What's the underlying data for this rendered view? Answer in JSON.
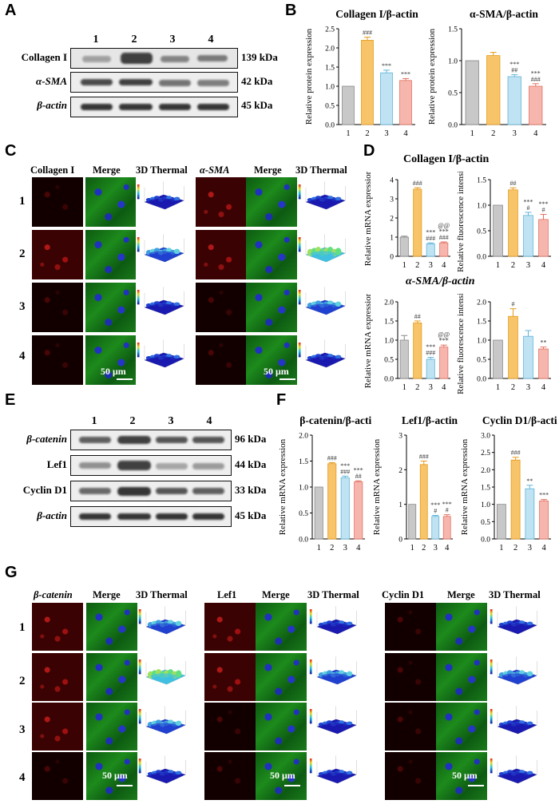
{
  "panels": {
    "A": "A",
    "B": "B",
    "C": "C",
    "D": "D",
    "E": "E",
    "F": "F",
    "G": "G"
  },
  "blot_A": {
    "lanes": [
      "1",
      "2",
      "3",
      "4"
    ],
    "rows": [
      {
        "protein": "Collagen I",
        "kda": "139 kDa"
      },
      {
        "protein": "α-SMA",
        "kda": "42 kDa"
      },
      {
        "protein": "β-actin",
        "kda": "45 kDa"
      }
    ]
  },
  "blot_E": {
    "lanes": [
      "1",
      "2",
      "3",
      "4"
    ],
    "rows": [
      {
        "protein": "β-catenin",
        "kda": "96 kDa"
      },
      {
        "protein": "Lef1",
        "kda": "44 kDa"
      },
      {
        "protein": "Cyclin D1",
        "kda": "33 kDa"
      },
      {
        "protein": "β-actin",
        "kda": "45 kDa"
      }
    ]
  },
  "panel_C": {
    "headers": [
      "Collagen I",
      "Merge",
      "3D Thermal",
      "α-SMA",
      "Merge",
      "3D Thermal"
    ],
    "rows": [
      "1",
      "2",
      "3",
      "4"
    ],
    "scale": "50 μm"
  },
  "panel_G": {
    "headers": [
      "β-catenin",
      "Merge",
      "3D Thermal",
      "Lef1",
      "Merge",
      "3D Thermal",
      "Cyclin D1",
      "Merge",
      "3D Thermal"
    ],
    "rows": [
      "1",
      "2",
      "3",
      "4"
    ],
    "scale": "50 μm"
  },
  "colors": {
    "bar1": "#c8c8c8",
    "bar2": "#f7c46a",
    "bar3": "#bfe3f2",
    "bar4": "#f7b6ad"
  },
  "chart_data": [
    {
      "id": "B1",
      "type": "bar",
      "title": "Collagen I/β-actin",
      "ylabel": "Relative protein expression",
      "categories": [
        "1",
        "2",
        "3",
        "4"
      ],
      "values": [
        1.0,
        2.2,
        1.35,
        1.15
      ],
      "errors": [
        0,
        0.08,
        0.07,
        0.05
      ],
      "ylim": [
        0,
        2.5
      ],
      "yticks": [
        "0.0",
        "0.5",
        "1.0",
        "1.5",
        "2.0",
        "2.5"
      ],
      "ytickvals": [
        0,
        0.5,
        1,
        1.5,
        2,
        2.5
      ],
      "annotations": [
        [],
        [
          "###"
        ],
        [
          "***"
        ],
        [
          "***"
        ]
      ]
    },
    {
      "id": "B2",
      "type": "bar",
      "title": "α-SMA/β-actin",
      "ylabel": "Relative protein expression",
      "categories": [
        "1",
        "2",
        "3",
        "4"
      ],
      "values": [
        1.0,
        1.08,
        0.75,
        0.6
      ],
      "errors": [
        0,
        0.05,
        0.03,
        0.04
      ],
      "ylim": [
        0,
        1.5
      ],
      "yticks": [
        "0.0",
        "0.5",
        "1.0",
        "1.5"
      ],
      "ytickvals": [
        0,
        0.5,
        1,
        1.5
      ],
      "annotations": [
        [],
        [],
        [
          "***",
          "##"
        ],
        [
          "***",
          "###"
        ]
      ]
    },
    {
      "id": "D1",
      "type": "bar",
      "title": "",
      "ylabel": "Relative mRNA expression",
      "categories": [
        "1",
        "2",
        "3",
        "4"
      ],
      "values": [
        1.0,
        3.5,
        0.65,
        0.7
      ],
      "errors": [
        0.05,
        0.08,
        0.05,
        0.05
      ],
      "ylim": [
        0,
        4
      ],
      "yticks": [
        "0",
        "1",
        "2",
        "3",
        "4"
      ],
      "ytickvals": [
        0,
        1,
        2,
        3,
        4
      ],
      "annotations": [
        [],
        [
          "###"
        ],
        [
          "***",
          "###"
        ],
        [
          "@@",
          "***",
          "###"
        ]
      ]
    },
    {
      "id": "D2",
      "type": "bar",
      "title": "",
      "ylabel": "Relative fluorescence intensity",
      "categories": [
        "1",
        "2",
        "3",
        "4"
      ],
      "values": [
        1.0,
        1.3,
        0.8,
        0.72
      ],
      "errors": [
        0,
        0.04,
        0.06,
        0.1
      ],
      "ylim": [
        0,
        1.5
      ],
      "yticks": [
        "0.0",
        "0.5",
        "1.0",
        "1.5"
      ],
      "ytickvals": [
        0,
        0.5,
        1,
        1.5
      ],
      "annotations": [
        [],
        [
          "##"
        ],
        [
          "***",
          "#"
        ],
        [
          "***",
          "#"
        ]
      ]
    },
    {
      "id": "D3",
      "type": "bar",
      "title": "",
      "ylabel": "Relative mRNA expression",
      "categories": [
        "1",
        "2",
        "3",
        "4"
      ],
      "values": [
        1.0,
        1.45,
        0.5,
        0.82
      ],
      "errors": [
        0.12,
        0.05,
        0.05,
        0.05
      ],
      "ylim": [
        0,
        2.0
      ],
      "yticks": [
        "0.0",
        "0.5",
        "1.0",
        "1.5",
        "2.0"
      ],
      "ytickvals": [
        0,
        0.5,
        1,
        1.5,
        2
      ],
      "annotations": [
        [],
        [
          "##"
        ],
        [
          "***",
          "###"
        ],
        [
          "@@",
          "***"
        ]
      ]
    },
    {
      "id": "D4",
      "type": "bar",
      "title": "",
      "ylabel": "Relative fluorescence intensity",
      "categories": [
        "1",
        "2",
        "3",
        "4"
      ],
      "values": [
        1.0,
        1.62,
        1.1,
        0.77
      ],
      "errors": [
        0,
        0.2,
        0.15,
        0.05
      ],
      "ylim": [
        0,
        2.0
      ],
      "yticks": [
        "0.0",
        "0.5",
        "1.0",
        "1.5",
        "2.0"
      ],
      "ytickvals": [
        0,
        0.5,
        1,
        1.5,
        2
      ],
      "annotations": [
        [],
        [
          "#"
        ],
        [],
        [
          "**"
        ]
      ]
    },
    {
      "id": "F1",
      "type": "bar",
      "title": "β-catenin/β-actin",
      "ylabel": "Relative mRNA expression",
      "categories": [
        "1",
        "2",
        "3",
        "4"
      ],
      "values": [
        1.0,
        1.45,
        1.18,
        1.1
      ],
      "errors": [
        0,
        0.02,
        0.03,
        0.02
      ],
      "ylim": [
        0,
        2.0
      ],
      "yticks": [
        "0.0",
        "0.5",
        "1.0",
        "1.5",
        "2.0"
      ],
      "ytickvals": [
        0,
        0.5,
        1,
        1.5,
        2
      ],
      "annotations": [
        [],
        [
          "###"
        ],
        [
          "***",
          "###"
        ],
        [
          "***",
          "##"
        ]
      ]
    },
    {
      "id": "F2",
      "type": "bar",
      "title": "Lef1/β-actin",
      "ylabel": "Relative mRNA expression",
      "categories": [
        "1",
        "2",
        "3",
        "4"
      ],
      "values": [
        1.0,
        2.15,
        0.65,
        0.65
      ],
      "errors": [
        0,
        0.1,
        0.03,
        0.05
      ],
      "ylim": [
        0,
        3
      ],
      "yticks": [
        "0",
        "1",
        "2",
        "3"
      ],
      "ytickvals": [
        0,
        1,
        2,
        3
      ],
      "annotations": [
        [],
        [
          "###"
        ],
        [
          "***",
          "#"
        ],
        [
          "***",
          "#"
        ]
      ]
    },
    {
      "id": "F3",
      "type": "bar",
      "title": "Cyclin D1/β-actin",
      "ylabel": "Relative mRNA expression",
      "categories": [
        "1",
        "2",
        "3",
        "4"
      ],
      "values": [
        1.0,
        2.28,
        1.45,
        1.1
      ],
      "errors": [
        0,
        0.08,
        0.1,
        0.04
      ],
      "ylim": [
        0,
        3.0
      ],
      "yticks": [
        "0.0",
        "0.5",
        "1.0",
        "1.5",
        "2.0",
        "2.5",
        "3.0"
      ],
      "ytickvals": [
        0,
        0.5,
        1,
        1.5,
        2,
        2.5,
        3
      ],
      "annotations": [
        [],
        [
          "###"
        ],
        [
          "**"
        ],
        [
          "***"
        ]
      ]
    }
  ],
  "panel_D_titles": {
    "top": "Collagen I/β-actin",
    "bottom": "α-SMA/β-actin"
  }
}
